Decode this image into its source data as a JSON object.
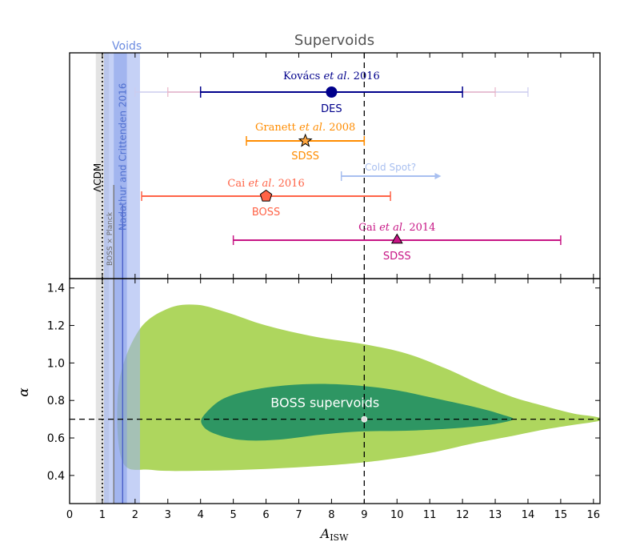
{
  "chart_data": {
    "type": "scatter",
    "title": "Supervoids",
    "xlabel_main": "A",
    "xlabel_sub": "ISW",
    "xlim": [
      0,
      16.2
    ],
    "x_ticks": [
      "0",
      "1",
      "2",
      "3",
      "4",
      "5",
      "6",
      "7",
      "8",
      "9",
      "10",
      "11",
      "12",
      "13",
      "14",
      "15",
      "16"
    ],
    "top_panel": {
      "measurements": [
        {
          "author": "Kovács",
          "etal": "et al.",
          "year": "2016",
          "survey": "DES",
          "value": 8.0,
          "low": 4.0,
          "high": 12.0,
          "outer_low": 2.0,
          "outer_high": 14.0,
          "mid_low": 3.0,
          "mid_high": 13.0,
          "marker": "circle",
          "color": "#00008b"
        },
        {
          "author": "Granett",
          "etal": "et al.",
          "year": "2008",
          "survey": "SDSS",
          "value": 7.2,
          "low": 5.4,
          "high": 9.0,
          "marker": "star",
          "color": "#ff8c00"
        },
        {
          "author": "Cai",
          "etal": "et al.",
          "year": "2016",
          "survey": "BOSS",
          "value": 6.0,
          "low": 2.2,
          "high": 9.8,
          "marker": "pentagon",
          "color": "#ff6347"
        },
        {
          "author": "Cai",
          "etal": "et al.",
          "year": "2014",
          "survey": "SDSS",
          "value": 10.0,
          "low": 5.0,
          "high": 15.0,
          "marker": "triangle",
          "color": "#c71585"
        }
      ],
      "cold_spot": {
        "label": "Cold Spot?",
        "from": 8.3,
        "to": 11.3,
        "color": "#a8bff0"
      },
      "voids_label": "Voids",
      "lcdm_label": "ΛCDM",
      "planck_label": "BOSS × Planck",
      "nc_label": "Nadathur and Crittenden 2016"
    },
    "bottom_panel": {
      "ylabel": "α",
      "ylim": [
        0.25,
        1.45
      ],
      "y_ticks": [
        "0.4",
        "0.6",
        "0.8",
        "1.0",
        "1.2",
        "1.4"
      ],
      "contour_label": "BOSS supervoids",
      "best_fit": {
        "x": 9.0,
        "y": 0.7
      },
      "hline_y": 0.7
    },
    "vline_x": 9.0,
    "lcdm_x": 1.0,
    "gray_band": [
      0.8,
      1.2
    ],
    "void_band_outer": [
      1.05,
      2.15
    ],
    "void_band_inner": [
      1.35,
      1.75
    ],
    "void_lines": [
      1.35,
      1.62
    ]
  }
}
